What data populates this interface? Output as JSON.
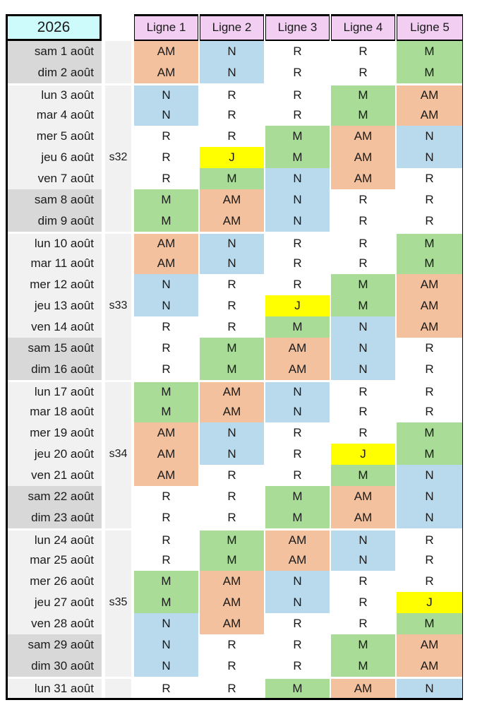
{
  "header": {
    "year": "2026",
    "columns": [
      "Ligne 1",
      "Ligne 2",
      "Ligne 3",
      "Ligne 4",
      "Ligne 5"
    ]
  },
  "colors": {
    "shift_AM": "#F4C19E",
    "shift_N": "#B9D9EC",
    "shift_R": "#FFFFFF",
    "shift_M": "#A9DC96",
    "shift_J": "#FFFF00",
    "header_fill": "#F1CEF2",
    "year_fill": "#CDFBFB",
    "weekday_fill": "#F1F1F1",
    "weekend_fill": "#D8D8D8",
    "border": "#000000"
  },
  "week_labels": [
    "s32",
    "s33",
    "s34",
    "s35"
  ],
  "rows": [
    {
      "date": "sam 1 août",
      "week": "",
      "weekend": true,
      "values": [
        "AM",
        "N",
        "R",
        "R",
        "M"
      ]
    },
    {
      "date": "dim 2 août",
      "week": "",
      "weekend": true,
      "values": [
        "AM",
        "N",
        "R",
        "R",
        "M"
      ]
    },
    {
      "date": "lun 3 août",
      "week": "",
      "weekend": false,
      "values": [
        "N",
        "R",
        "R",
        "M",
        "AM"
      ]
    },
    {
      "date": "mar 4 août",
      "week": "",
      "weekend": false,
      "values": [
        "N",
        "R",
        "R",
        "M",
        "AM"
      ]
    },
    {
      "date": "mer 5 août",
      "week": "",
      "weekend": false,
      "values": [
        "R",
        "R",
        "M",
        "AM",
        "N"
      ]
    },
    {
      "date": "jeu 6 août",
      "week": "s32",
      "weekend": false,
      "values": [
        "R",
        "J",
        "M",
        "AM",
        "N"
      ]
    },
    {
      "date": "ven 7 août",
      "week": "",
      "weekend": false,
      "values": [
        "R",
        "M",
        "N",
        "AM",
        "R"
      ]
    },
    {
      "date": "sam 8 août",
      "week": "",
      "weekend": true,
      "values": [
        "M",
        "AM",
        "N",
        "R",
        "R"
      ]
    },
    {
      "date": "dim 9 août",
      "week": "",
      "weekend": true,
      "values": [
        "M",
        "AM",
        "N",
        "R",
        "R"
      ]
    },
    {
      "date": "lun 10 août",
      "week": "",
      "weekend": false,
      "values": [
        "AM",
        "N",
        "R",
        "R",
        "M"
      ]
    },
    {
      "date": "mar 11 août",
      "week": "",
      "weekend": false,
      "values": [
        "AM",
        "N",
        "R",
        "R",
        "M"
      ]
    },
    {
      "date": "mer 12 août",
      "week": "",
      "weekend": false,
      "values": [
        "N",
        "R",
        "R",
        "M",
        "AM"
      ]
    },
    {
      "date": "jeu 13 août",
      "week": "s33",
      "weekend": false,
      "values": [
        "N",
        "R",
        "J",
        "M",
        "AM"
      ]
    },
    {
      "date": "ven 14 août",
      "week": "",
      "weekend": false,
      "values": [
        "R",
        "R",
        "M",
        "N",
        "AM"
      ]
    },
    {
      "date": "sam 15 août",
      "week": "",
      "weekend": true,
      "values": [
        "R",
        "M",
        "AM",
        "N",
        "R"
      ]
    },
    {
      "date": "dim 16 août",
      "week": "",
      "weekend": true,
      "values": [
        "R",
        "M",
        "AM",
        "N",
        "R"
      ]
    },
    {
      "date": "lun 17 août",
      "week": "",
      "weekend": false,
      "values": [
        "M",
        "AM",
        "N",
        "R",
        "R"
      ]
    },
    {
      "date": "mar 18 août",
      "week": "",
      "weekend": false,
      "values": [
        "M",
        "AM",
        "N",
        "R",
        "R"
      ]
    },
    {
      "date": "mer 19 août",
      "week": "",
      "weekend": false,
      "values": [
        "AM",
        "N",
        "R",
        "R",
        "M"
      ]
    },
    {
      "date": "jeu 20 août",
      "week": "s34",
      "weekend": false,
      "values": [
        "AM",
        "N",
        "R",
        "J",
        "M"
      ]
    },
    {
      "date": "ven 21 août",
      "week": "",
      "weekend": false,
      "values": [
        "AM",
        "R",
        "R",
        "M",
        "N"
      ]
    },
    {
      "date": "sam 22 août",
      "week": "",
      "weekend": true,
      "values": [
        "R",
        "R",
        "M",
        "AM",
        "N"
      ]
    },
    {
      "date": "dim 23 août",
      "week": "",
      "weekend": true,
      "values": [
        "R",
        "R",
        "M",
        "AM",
        "N"
      ]
    },
    {
      "date": "lun 24 août",
      "week": "",
      "weekend": false,
      "values": [
        "R",
        "M",
        "AM",
        "N",
        "R"
      ]
    },
    {
      "date": "mar 25 août",
      "week": "",
      "weekend": false,
      "values": [
        "R",
        "M",
        "AM",
        "N",
        "R"
      ]
    },
    {
      "date": "mer 26 août",
      "week": "",
      "weekend": false,
      "values": [
        "M",
        "AM",
        "N",
        "R",
        "R"
      ]
    },
    {
      "date": "jeu 27 août",
      "week": "s35",
      "weekend": false,
      "values": [
        "M",
        "AM",
        "N",
        "R",
        "J"
      ]
    },
    {
      "date": "ven 28 août",
      "week": "",
      "weekend": false,
      "values": [
        "N",
        "AM",
        "R",
        "R",
        "M"
      ]
    },
    {
      "date": "sam 29 août",
      "week": "",
      "weekend": true,
      "values": [
        "N",
        "R",
        "R",
        "M",
        "AM"
      ]
    },
    {
      "date": "dim 30 août",
      "week": "",
      "weekend": true,
      "values": [
        "N",
        "R",
        "R",
        "M",
        "AM"
      ]
    },
    {
      "date": "lun 31 août",
      "week": "",
      "weekend": false,
      "values": [
        "R",
        "R",
        "M",
        "AM",
        "N"
      ]
    }
  ]
}
